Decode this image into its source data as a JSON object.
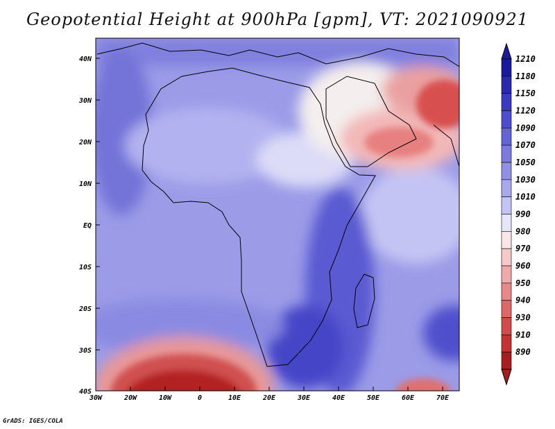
{
  "title": "Geopotential Height at 900hPa [gpm], VT: 2021090921",
  "footer": "GrADS: IGES/COLA",
  "map": {
    "lat_labels": [
      "40N",
      "30N",
      "20N",
      "10N",
      "EQ",
      "10S",
      "20S",
      "30S",
      "40S"
    ],
    "lon_labels": [
      "30W",
      "20W",
      "10W",
      "0",
      "10E",
      "20E",
      "30E",
      "40E",
      "50E",
      "60E",
      "70E"
    ]
  },
  "colorbar": {
    "labels": [
      "1210",
      "1180",
      "1150",
      "1120",
      "1090",
      "1070",
      "1050",
      "1030",
      "1010",
      "990",
      "980",
      "970",
      "960",
      "950",
      "940",
      "930",
      "910",
      "890"
    ],
    "colors": [
      "#1a1a9e",
      "#2929b0",
      "#3a3ac2",
      "#4d4dcf",
      "#6464d9",
      "#7a7ae0",
      "#9090e6",
      "#a8a8ee",
      "#c4c4f4",
      "#e6e6fa",
      "#fae6e6",
      "#f6c8c8",
      "#f0a8a8",
      "#e88888",
      "#de6868",
      "#d24a4a",
      "#c43232",
      "#a81e1e"
    ]
  }
}
